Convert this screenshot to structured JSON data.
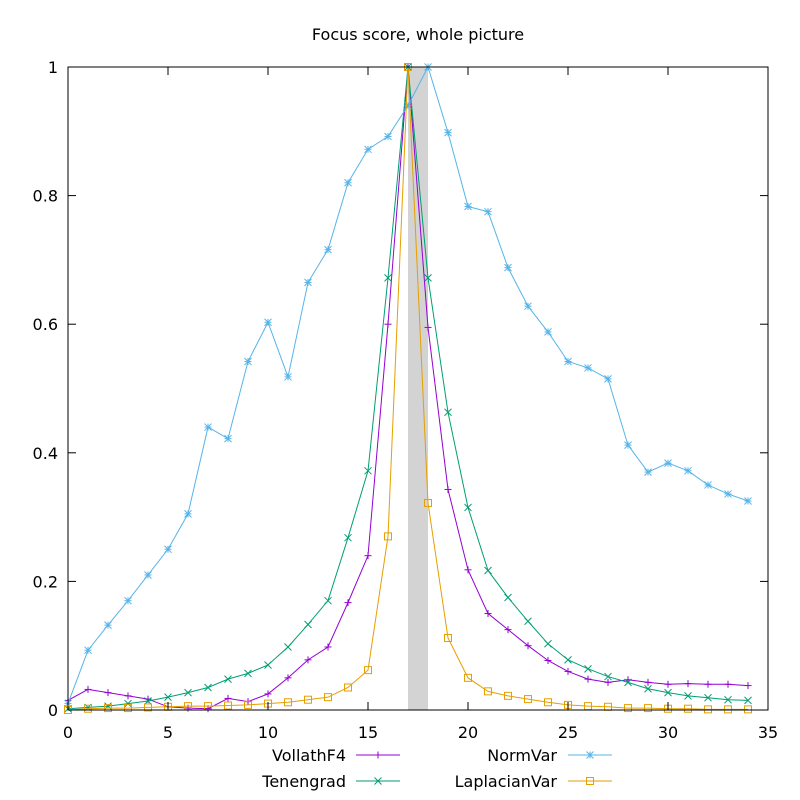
{
  "chart_data": {
    "type": "line",
    "title": "Focus score, whole picture",
    "xlabel": "",
    "ylabel": "",
    "xlim": [
      0,
      35
    ],
    "ylim": [
      0,
      1
    ],
    "x_ticks": [
      "0",
      "5",
      "10",
      "15",
      "20",
      "25",
      "30",
      "35"
    ],
    "y_ticks": [
      "0",
      "0.2",
      "0.4",
      "0.6",
      "0.8",
      "1"
    ],
    "highlight_band": {
      "x0": 17,
      "x1": 18,
      "color": "#d3d3d3"
    },
    "legend_position": "bottom",
    "grid": false,
    "x": [
      0,
      1,
      2,
      3,
      4,
      5,
      6,
      7,
      8,
      9,
      10,
      11,
      12,
      13,
      14,
      15,
      16,
      17,
      18,
      19,
      20,
      21,
      22,
      23,
      24,
      25,
      26,
      27,
      28,
      29,
      30,
      31,
      32,
      33,
      34
    ],
    "series": [
      {
        "name": "VollathF4",
        "color": "#9400d3",
        "marker": "plus",
        "values": [
          0.015,
          0.032,
          0.027,
          0.022,
          0.017,
          0.005,
          0.003,
          0.002,
          0.018,
          0.013,
          0.025,
          0.05,
          0.078,
          0.098,
          0.167,
          0.24,
          0.6,
          1.0,
          0.595,
          0.343,
          0.218,
          0.15,
          0.125,
          0.1,
          0.077,
          0.06,
          0.048,
          0.043,
          0.047,
          0.043,
          0.04,
          0.041,
          0.04,
          0.04,
          0.038
        ]
      },
      {
        "name": "Tenengrad",
        "color": "#009e73",
        "marker": "cross",
        "values": [
          0.002,
          0.004,
          0.006,
          0.01,
          0.014,
          0.02,
          0.027,
          0.035,
          0.048,
          0.057,
          0.07,
          0.098,
          0.133,
          0.17,
          0.268,
          0.372,
          0.672,
          1.0,
          0.672,
          0.463,
          0.315,
          0.217,
          0.175,
          0.138,
          0.103,
          0.078,
          0.064,
          0.052,
          0.043,
          0.033,
          0.027,
          0.022,
          0.019,
          0.016,
          0.015
        ]
      },
      {
        "name": "NormVar",
        "color": "#56b4e9",
        "marker": "star",
        "values": [
          0.01,
          0.093,
          0.132,
          0.17,
          0.21,
          0.25,
          0.305,
          0.44,
          0.422,
          0.542,
          0.603,
          0.518,
          0.665,
          0.716,
          0.82,
          0.872,
          0.892,
          0.94,
          1.0,
          0.898,
          0.783,
          0.775,
          0.688,
          0.628,
          0.588,
          0.542,
          0.532,
          0.515,
          0.412,
          0.37,
          0.384,
          0.372,
          0.35,
          0.336,
          0.325
        ]
      },
      {
        "name": "LaplacianVar",
        "color": "#e69f00",
        "marker": "square",
        "values": [
          0.0,
          0.002,
          0.003,
          0.003,
          0.004,
          0.005,
          0.006,
          0.006,
          0.007,
          0.008,
          0.01,
          0.012,
          0.016,
          0.02,
          0.035,
          0.062,
          0.27,
          1.0,
          0.322,
          0.112,
          0.05,
          0.029,
          0.022,
          0.017,
          0.012,
          0.008,
          0.006,
          0.005,
          0.003,
          0.003,
          0.002,
          0.002,
          0.001,
          0.001,
          0.001
        ]
      }
    ]
  }
}
